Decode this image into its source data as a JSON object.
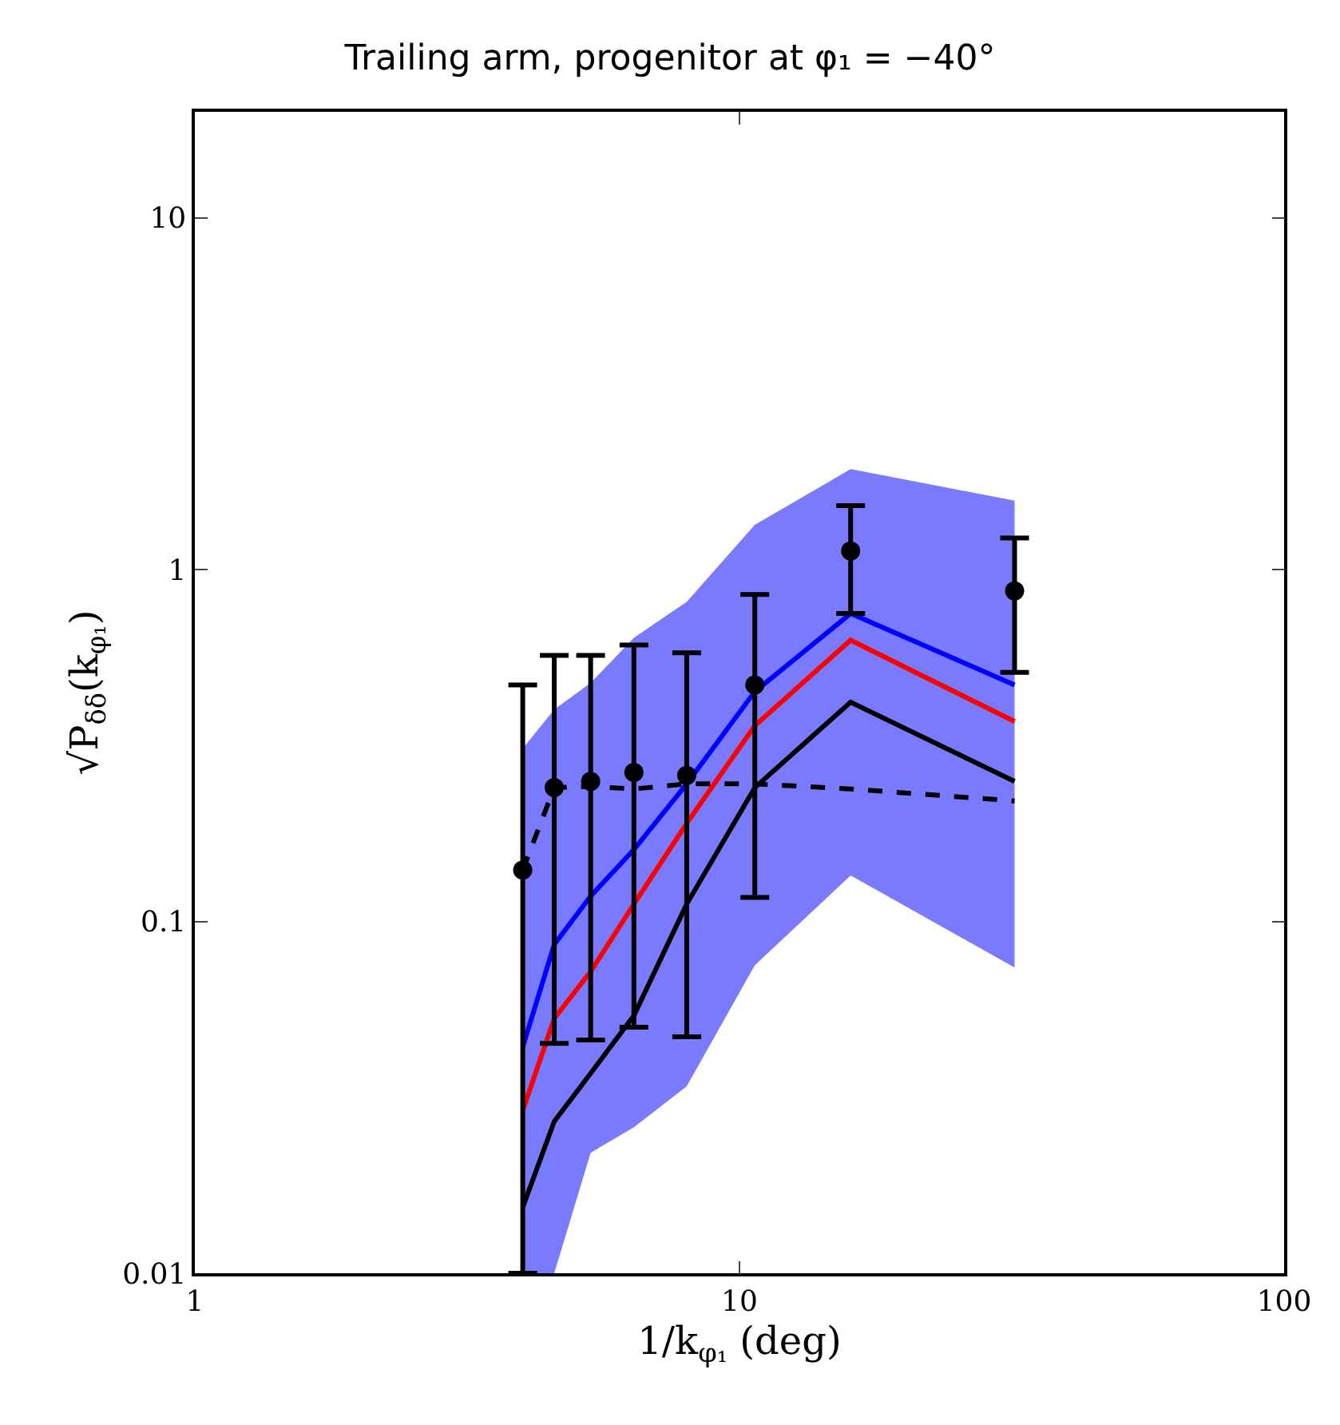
{
  "chart_data": {
    "type": "line",
    "title": "Trailing arm, progenitor at φ₁ = −40°",
    "xlabel": "1/k$_{φ₁}$ (deg)",
    "ylabel": "√P$_{δδ}$(k$_{φ₁}$)",
    "x": [
      4,
      4.57,
      5.33,
      6.4,
      8,
      10.67,
      16,
      32
    ],
    "log": "xy",
    "xlim": [
      1,
      100
    ],
    "xticks": [
      1,
      10,
      100
    ],
    "ylim": [
      0.01,
      20
    ],
    "yticks": [
      0.01,
      0.1,
      1,
      10
    ],
    "grid": false,
    "series": [
      {
        "color": "#0000ff",
        "values": [
          0.044,
          0.086,
          0.118,
          0.16,
          0.246,
          0.45,
          0.75,
          0.47
        ],
        "upper": [
          0.31,
          0.4,
          0.476,
          0.64,
          0.81,
          1.34,
          1.93,
          1.57
        ],
        "lower": [
          0.01,
          0.01,
          0.022,
          0.026,
          0.034,
          0.075,
          0.135,
          0.074
        ]
      },
      {
        "color": "#ff0000",
        "values": [
          0.029,
          0.053,
          0.072,
          0.112,
          0.19,
          0.36,
          0.63,
          0.37
        ]
      },
      {
        "color": "#000000",
        "values": [
          0.0154,
          0.027,
          0.037,
          0.054,
          0.112,
          0.24,
          0.42,
          0.25
        ]
      },
      {
        "color": "#000000",
        "line_style": "dashed",
        "values": [
          0.14,
          0.24,
          0.242,
          0.238,
          0.246,
          0.246,
          0.238,
          0.22
        ]
      },
      {
        "type": "scatter",
        "color": "#000000",
        "marker": "circle",
        "values": [
          0.14,
          0.24,
          0.25,
          0.265,
          0.26,
          0.47,
          1.13,
          0.87
        ],
        "errors": [
          [
            0.01,
            0.47
          ],
          [
            0.045,
            0.57
          ],
          [
            0.046,
            0.57
          ],
          [
            0.05,
            0.61
          ],
          [
            0.047,
            0.58
          ],
          [
            0.117,
            0.85
          ],
          [
            0.75,
            1.52
          ],
          [
            0.51,
            1.23
          ]
        ]
      }
    ]
  }
}
